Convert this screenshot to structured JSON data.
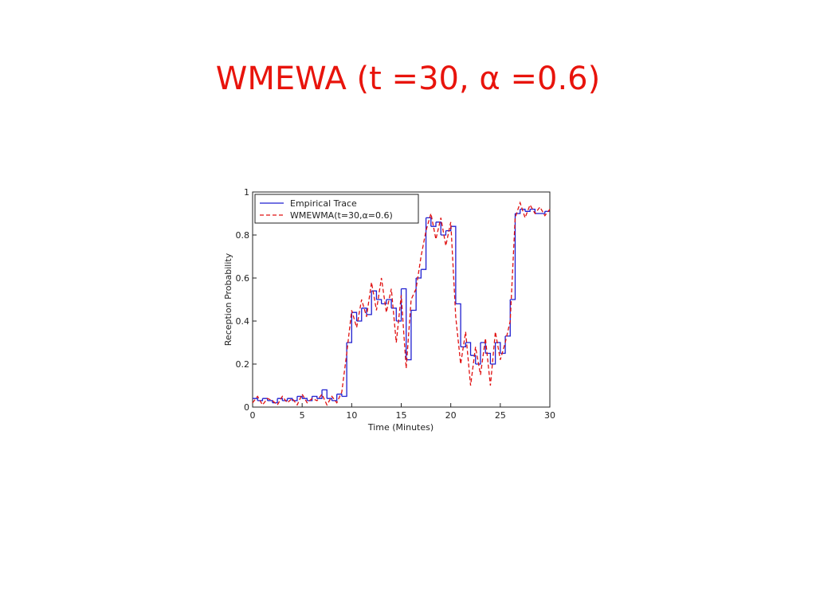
{
  "slide": {
    "title": "WMEWA (t =30, α =0.6)"
  },
  "chart_data": {
    "type": "line",
    "xlabel": "Time (Minutes)",
    "ylabel": "Reception Probability",
    "xlim": [
      0,
      30
    ],
    "xticks": [
      0,
      5,
      10,
      15,
      20,
      25,
      30
    ],
    "ylim": [
      0,
      1
    ],
    "yticks": [
      0,
      0.2,
      0.4,
      0.6,
      0.8,
      1
    ],
    "legend": "upper left",
    "x": [
      0,
      0.5,
      1,
      1.5,
      2,
      2.5,
      3,
      3.5,
      4,
      4.5,
      5,
      5.5,
      6,
      6.5,
      7,
      7.5,
      8,
      8.5,
      9,
      9.5,
      10,
      10.5,
      11,
      11.5,
      12,
      12.5,
      13,
      13.5,
      14,
      14.5,
      15,
      15.5,
      16,
      16.5,
      17,
      17.5,
      18,
      18.5,
      19,
      19.5,
      20,
      20.5,
      21,
      21.5,
      22,
      22.5,
      23,
      23.5,
      24,
      24.5,
      25,
      25.5,
      26,
      26.5,
      27,
      27.5,
      28,
      28.5,
      29,
      29.5,
      30
    ],
    "series": [
      {
        "name": "Empirical Trace",
        "color": "#1f1fd0",
        "style": "step",
        "values": [
          0.04,
          0.03,
          0.04,
          0.03,
          0.02,
          0.04,
          0.03,
          0.04,
          0.03,
          0.05,
          0.04,
          0.03,
          0.05,
          0.04,
          0.08,
          0.04,
          0.03,
          0.06,
          0.05,
          0.3,
          0.44,
          0.4,
          0.46,
          0.43,
          0.54,
          0.5,
          0.48,
          0.5,
          0.46,
          0.4,
          0.55,
          0.22,
          0.45,
          0.6,
          0.64,
          0.88,
          0.84,
          0.86,
          0.8,
          0.82,
          0.84,
          0.48,
          0.28,
          0.3,
          0.24,
          0.2,
          0.3,
          0.25,
          0.2,
          0.3,
          0.25,
          0.33,
          0.5,
          0.9,
          0.92,
          0.91,
          0.92,
          0.9,
          0.9,
          0.91,
          0.91
        ]
      },
      {
        "name": "WMEWMA(t=30,α=0.6)",
        "color": "#e01010",
        "style": "dashed",
        "values": [
          0.02,
          0.05,
          0.01,
          0.04,
          0.03,
          0.01,
          0.05,
          0.02,
          0.04,
          0.01,
          0.06,
          0.02,
          0.04,
          0.03,
          0.06,
          0.01,
          0.05,
          0.02,
          0.07,
          0.25,
          0.45,
          0.37,
          0.5,
          0.42,
          0.58,
          0.45,
          0.6,
          0.44,
          0.55,
          0.3,
          0.52,
          0.18,
          0.5,
          0.55,
          0.7,
          0.82,
          0.9,
          0.78,
          0.88,
          0.75,
          0.86,
          0.42,
          0.2,
          0.35,
          0.1,
          0.28,
          0.15,
          0.32,
          0.1,
          0.35,
          0.22,
          0.3,
          0.4,
          0.88,
          0.95,
          0.88,
          0.94,
          0.9,
          0.93,
          0.89,
          0.92
        ]
      }
    ]
  }
}
